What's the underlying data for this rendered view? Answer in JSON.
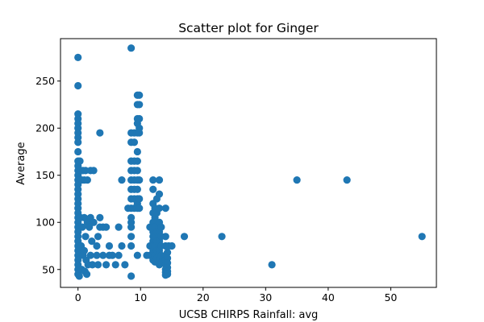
{
  "chart_data": {
    "type": "scatter",
    "title": "Scatter plot for Ginger",
    "xlabel": "UCSB CHIRPS Rainfall: avg",
    "ylabel": "Average",
    "xlim": [
      -2.8,
      57.3
    ],
    "ylim": [
      31,
      295
    ],
    "xticks": [
      0,
      10,
      20,
      30,
      40,
      50
    ],
    "yticks": [
      50,
      100,
      150,
      200,
      250
    ],
    "grid": false,
    "legend": "none",
    "marker_color": "#1f77b4",
    "points": [
      [
        0,
        275
      ],
      [
        0,
        245
      ],
      [
        0,
        215
      ],
      [
        0,
        210
      ],
      [
        0,
        205
      ],
      [
        0,
        200
      ],
      [
        0,
        195
      ],
      [
        0,
        190
      ],
      [
        0,
        185
      ],
      [
        0,
        175
      ],
      [
        0,
        165
      ],
      [
        0,
        160
      ],
      [
        0,
        155
      ],
      [
        0,
        150
      ],
      [
        0,
        145
      ],
      [
        0,
        140
      ],
      [
        0,
        135
      ],
      [
        0,
        130
      ],
      [
        0,
        125
      ],
      [
        0,
        120
      ],
      [
        0,
        115
      ],
      [
        0,
        110
      ],
      [
        0,
        105
      ],
      [
        0,
        100
      ],
      [
        0,
        95
      ],
      [
        0,
        90
      ],
      [
        0,
        85
      ],
      [
        0,
        80
      ],
      [
        0,
        75
      ],
      [
        0,
        70
      ],
      [
        0,
        65
      ],
      [
        0,
        60
      ],
      [
        0,
        55
      ],
      [
        0,
        50
      ],
      [
        0,
        45
      ],
      [
        0.2,
        43
      ],
      [
        0.3,
        165
      ],
      [
        0.5,
        155
      ],
      [
        0.6,
        145
      ],
      [
        0.8,
        155
      ],
      [
        1.0,
        145
      ],
      [
        1.2,
        155
      ],
      [
        1.5,
        145
      ],
      [
        2.0,
        155
      ],
      [
        2.5,
        155
      ],
      [
        0.4,
        105
      ],
      [
        0.7,
        95
      ],
      [
        1.0,
        105
      ],
      [
        1.2,
        85
      ],
      [
        1.5,
        100
      ],
      [
        1.8,
        95
      ],
      [
        2.0,
        105
      ],
      [
        2.2,
        80
      ],
      [
        2.5,
        100
      ],
      [
        0.5,
        75
      ],
      [
        0.8,
        65
      ],
      [
        1.0,
        70
      ],
      [
        1.3,
        60
      ],
      [
        1.6,
        55
      ],
      [
        2.0,
        65
      ],
      [
        2.3,
        55
      ],
      [
        0.6,
        50
      ],
      [
        1.1,
        48
      ],
      [
        1.4,
        45
      ],
      [
        3.5,
        195
      ],
      [
        3.5,
        105
      ],
      [
        3.5,
        95
      ],
      [
        3.2,
        85
      ],
      [
        3.0,
        75
      ],
      [
        3.0,
        65
      ],
      [
        3.2,
        55
      ],
      [
        4.0,
        95
      ],
      [
        4.5,
        95
      ],
      [
        4.0,
        65
      ],
      [
        5.0,
        75
      ],
      [
        5.0,
        65
      ],
      [
        4.5,
        55
      ],
      [
        5.5,
        65
      ],
      [
        6.0,
        55
      ],
      [
        6.5,
        65
      ],
      [
        6.5,
        95
      ],
      [
        7.0,
        75
      ],
      [
        7.0,
        145
      ],
      [
        7.5,
        55
      ],
      [
        8.0,
        115
      ],
      [
        8.5,
        285
      ],
      [
        8.5,
        195
      ],
      [
        8.5,
        185
      ],
      [
        8.5,
        165
      ],
      [
        8.5,
        155
      ],
      [
        8.5,
        145
      ],
      [
        8.5,
        135
      ],
      [
        8.5,
        125
      ],
      [
        8.5,
        115
      ],
      [
        8.5,
        105
      ],
      [
        8.5,
        100
      ],
      [
        8.5,
        95
      ],
      [
        8.5,
        85
      ],
      [
        8.5,
        75
      ],
      [
        8.5,
        43
      ],
      [
        9.0,
        195
      ],
      [
        9.0,
        185
      ],
      [
        9.0,
        165
      ],
      [
        9.0,
        155
      ],
      [
        9.0,
        145
      ],
      [
        9.0,
        135
      ],
      [
        9.0,
        125
      ],
      [
        9.0,
        115
      ],
      [
        9.5,
        235
      ],
      [
        9.5,
        225
      ],
      [
        9.5,
        210
      ],
      [
        9.5,
        205
      ],
      [
        9.5,
        195
      ],
      [
        9.5,
        175
      ],
      [
        9.5,
        165
      ],
      [
        9.5,
        155
      ],
      [
        9.5,
        145
      ],
      [
        9.5,
        135
      ],
      [
        9.5,
        125
      ],
      [
        9.5,
        120
      ],
      [
        9.5,
        115
      ],
      [
        9.5,
        65
      ],
      [
        9.8,
        235
      ],
      [
        9.8,
        225
      ],
      [
        9.8,
        210
      ],
      [
        9.8,
        200
      ],
      [
        9.8,
        195
      ],
      [
        9.8,
        145
      ],
      [
        9.8,
        125
      ],
      [
        9.8,
        115
      ],
      [
        11.0,
        65
      ],
      [
        11.5,
        95
      ],
      [
        11.5,
        75
      ],
      [
        11.5,
        65
      ],
      [
        12.0,
        145
      ],
      [
        12.0,
        135
      ],
      [
        12.0,
        120
      ],
      [
        12.0,
        110
      ],
      [
        12.0,
        100
      ],
      [
        12.0,
        95
      ],
      [
        12.0,
        90
      ],
      [
        12.0,
        85
      ],
      [
        12.0,
        80
      ],
      [
        12.0,
        75
      ],
      [
        12.0,
        70
      ],
      [
        12.0,
        65
      ],
      [
        12.0,
        60
      ],
      [
        12.3,
        115
      ],
      [
        12.3,
        105
      ],
      [
        12.3,
        95
      ],
      [
        12.3,
        85
      ],
      [
        12.3,
        75
      ],
      [
        12.3,
        65
      ],
      [
        12.3,
        58
      ],
      [
        12.6,
        125
      ],
      [
        12.6,
        110
      ],
      [
        12.6,
        90
      ],
      [
        12.6,
        80
      ],
      [
        12.6,
        70
      ],
      [
        12.6,
        62
      ],
      [
        13.0,
        145
      ],
      [
        13.0,
        130
      ],
      [
        13.0,
        115
      ],
      [
        13.0,
        100
      ],
      [
        13.0,
        90
      ],
      [
        13.0,
        80
      ],
      [
        13.0,
        70
      ],
      [
        13.0,
        60
      ],
      [
        13.0,
        55
      ],
      [
        13.3,
        95
      ],
      [
        13.3,
        85
      ],
      [
        13.3,
        75
      ],
      [
        13.3,
        65
      ],
      [
        13.3,
        57
      ],
      [
        14.0,
        115
      ],
      [
        14.0,
        85
      ],
      [
        14.0,
        75
      ],
      [
        14.0,
        65
      ],
      [
        14.0,
        60
      ],
      [
        14.0,
        55
      ],
      [
        14.0,
        50
      ],
      [
        14.0,
        47
      ],
      [
        14.0,
        44
      ],
      [
        14.3,
        68
      ],
      [
        14.3,
        62
      ],
      [
        14.3,
        57
      ],
      [
        14.3,
        52
      ],
      [
        14.3,
        48
      ],
      [
        14.3,
        45
      ],
      [
        14.5,
        75
      ],
      [
        15.0,
        75
      ],
      [
        17.0,
        85
      ],
      [
        23.0,
        85
      ],
      [
        31.0,
        55
      ],
      [
        35.0,
        145
      ],
      [
        43.0,
        145
      ],
      [
        55.0,
        85
      ]
    ]
  }
}
